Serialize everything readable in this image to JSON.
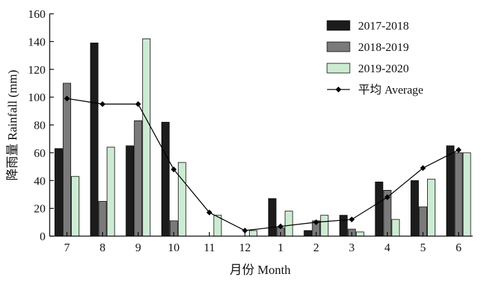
{
  "chart_data": {
    "type": "bar",
    "title": "",
    "xlabel": "月份 Month",
    "ylabel": "降雨量 Rainfall (mm)",
    "ylim": [
      0,
      160
    ],
    "yticks": [
      0,
      20,
      40,
      60,
      80,
      100,
      120,
      140,
      160
    ],
    "grid": false,
    "legend_position": "top-right",
    "categories": [
      "7",
      "8",
      "9",
      "10",
      "11",
      "12",
      "1",
      "2",
      "3",
      "4",
      "5",
      "6"
    ],
    "series": [
      {
        "name": "2017-2018",
        "type": "bar",
        "color": "#1c1c1c",
        "values": [
          63,
          139,
          65,
          82,
          0,
          0,
          27,
          4,
          15,
          39,
          40,
          65
        ]
      },
      {
        "name": "2018-2019",
        "type": "bar",
        "color": "#7a7a7a",
        "values": [
          110,
          25,
          83,
          11,
          0,
          0,
          6,
          11,
          5,
          33,
          21,
          60
        ]
      },
      {
        "name": "2019-2020",
        "type": "bar",
        "color": "#cdebd3",
        "values": [
          43,
          64,
          142,
          53,
          15,
          4,
          18,
          15,
          3,
          12,
          41,
          60
        ]
      },
      {
        "name": "平均 Average",
        "type": "line",
        "color": "#000000",
        "values": [
          99,
          95,
          95,
          48,
          17,
          4,
          7,
          10,
          12,
          28,
          49,
          62
        ]
      }
    ]
  }
}
